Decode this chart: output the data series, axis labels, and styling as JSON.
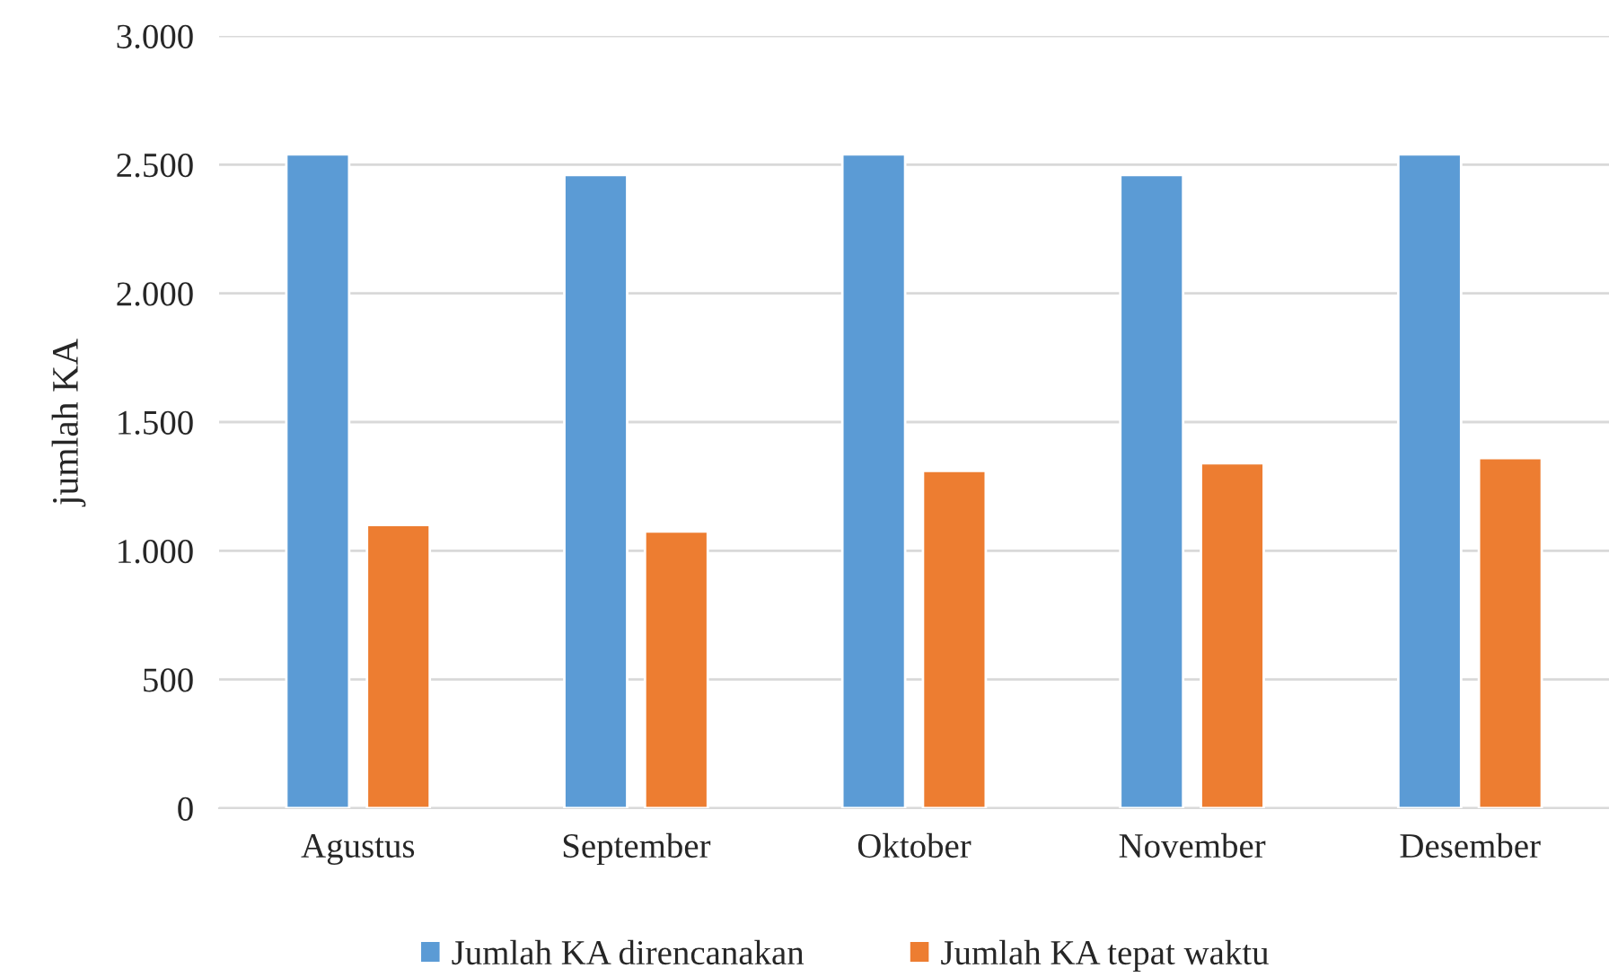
{
  "chart_data": {
    "type": "bar",
    "ylabel": "jumlah KA",
    "categories": [
      "Agustus",
      "September",
      "Oktober",
      "November",
      "Desember"
    ],
    "series": [
      {
        "name": "Jumlah KA direncanakan",
        "color": "#5b9bd5",
        "values": [
          2540,
          2460,
          2540,
          2460,
          2540
        ]
      },
      {
        "name": "Jumlah KA tepat waktu",
        "color": "#ed7d31",
        "values": [
          1100,
          1075,
          1310,
          1340,
          1360
        ]
      }
    ],
    "ylim": [
      0,
      3000
    ],
    "yticks": [
      0,
      500,
      {
        "value": 1000,
        "label": "1.000"
      },
      {
        "value": 1500,
        "label": "1.500"
      },
      {
        "value": 2000,
        "label": "2.000"
      },
      {
        "value": 2500,
        "label": "2.500"
      },
      {
        "value": 3000,
        "label": "3.000"
      }
    ],
    "grid": "y",
    "legend": "bottom"
  }
}
